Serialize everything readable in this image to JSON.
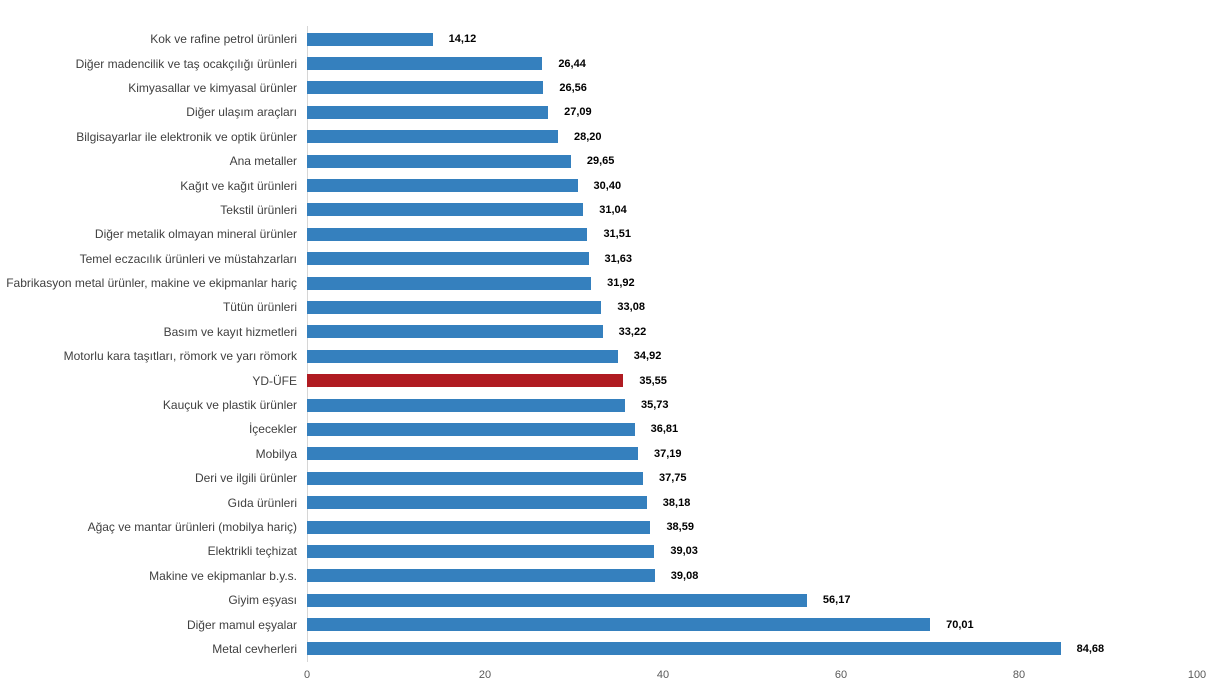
{
  "chart_data": {
    "type": "bar",
    "orientation": "horizontal",
    "title": "",
    "categories": [
      "Kok ve rafine petrol ürünleri",
      "Diğer madencilik ve taş ocakçılığı ürünleri",
      "Kimyasallar ve kimyasal ürünler",
      "Diğer ulaşım araçları",
      "Bilgisayarlar ile elektronik ve optik ürünler",
      "Ana metaller",
      "Kağıt ve kağıt ürünleri",
      "Tekstil ürünleri",
      "Diğer metalik olmayan mineral ürünler",
      "Temel eczacılık ürünleri ve müstahzarları",
      "Fabrikasyon metal ürünler, makine ve ekipmanlar hariç",
      "Tütün ürünleri",
      "Basım ve kayıt hizmetleri",
      "Motorlu kara taşıtları, römork ve yarı römork",
      "YD-ÜFE",
      "Kauçuk ve plastik ürünler",
      "İçecekler",
      "Mobilya",
      "Deri ve ilgili ürünler",
      "Gıda ürünleri",
      "Ağaç ve mantar ürünleri (mobilya hariç)",
      "Elektrikli teçhizat",
      "Makine ve ekipmanlar b.y.s.",
      "Giyim eşyası",
      "Diğer mamul eşyalar",
      "Metal cevherleri"
    ],
    "values": [
      14.12,
      26.44,
      26.56,
      27.09,
      28.2,
      29.65,
      30.4,
      31.04,
      31.51,
      31.63,
      31.92,
      33.08,
      33.22,
      34.92,
      35.55,
      35.73,
      36.81,
      37.19,
      37.75,
      38.18,
      38.59,
      39.03,
      39.08,
      56.17,
      70.01,
      84.68
    ],
    "value_labels": [
      "14,12",
      "26,44",
      "26,56",
      "27,09",
      "28,20",
      "29,65",
      "30,40",
      "31,04",
      "31,51",
      "31,63",
      "31,92",
      "33,08",
      "33,22",
      "34,92",
      "35,55",
      "35,73",
      "36,81",
      "37,19",
      "37,75",
      "38,18",
      "38,59",
      "39,03",
      "39,08",
      "56,17",
      "70,01",
      "84,68"
    ],
    "highlight_category": "YD-ÜFE",
    "xlim": [
      0,
      100
    ],
    "x_ticks": [
      "0",
      "20",
      "40",
      "60",
      "80",
      "100"
    ],
    "grid": "none",
    "legend": "none",
    "colors": {
      "bar_default": "#3580BE",
      "bar_highlight": "#B01B21",
      "axis_line": "#D6D6D6",
      "value_label": "#000000",
      "category_label": "#404040",
      "tick_label": "#595959"
    }
  }
}
